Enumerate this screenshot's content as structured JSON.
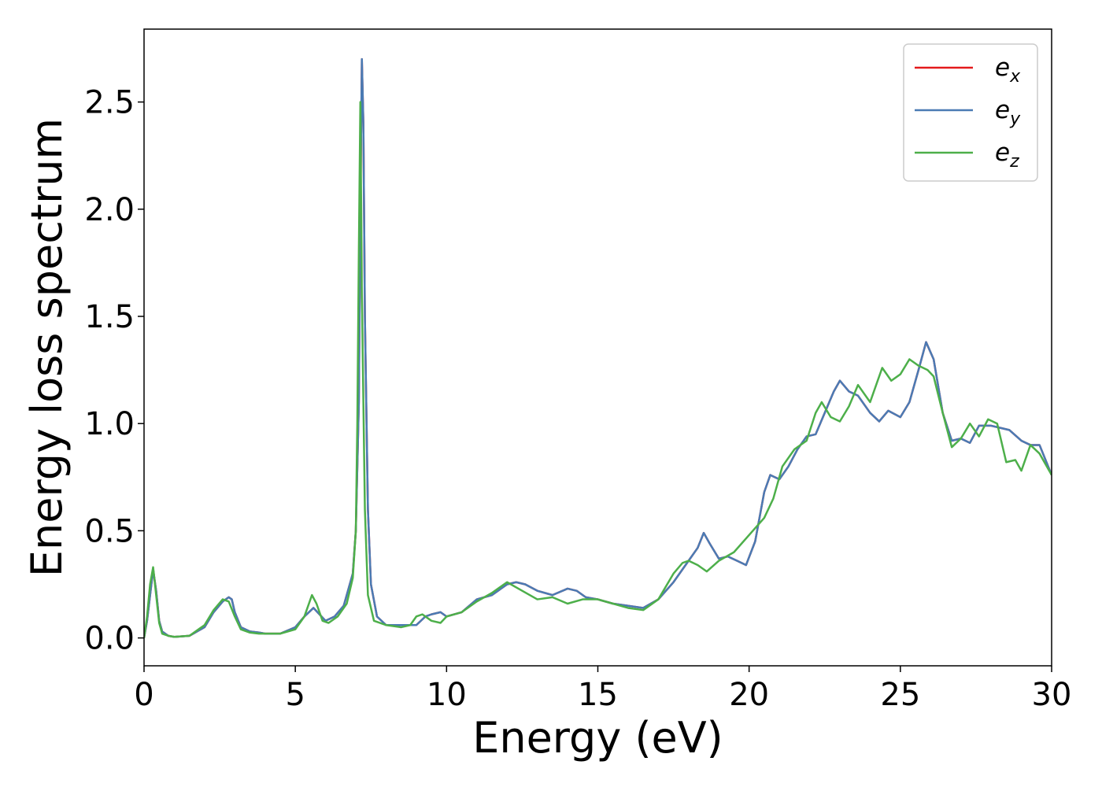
{
  "chart_data": {
    "type": "line",
    "xlabel": "Energy (eV)",
    "ylabel": "Energy loss spectrum",
    "xlim": [
      0,
      30
    ],
    "ylim": [
      -0.13,
      2.84
    ],
    "xticks": [
      0,
      5,
      10,
      15,
      20,
      25,
      30
    ],
    "xtick_labels": [
      "0",
      "5",
      "10",
      "15",
      "20",
      "25",
      "30"
    ],
    "yticks": [
      0.0,
      0.5,
      1.0,
      1.5,
      2.0,
      2.5
    ],
    "ytick_labels": [
      "0.0",
      "0.5",
      "1.0",
      "1.5",
      "2.0",
      "2.5"
    ],
    "grid": false,
    "legend_position": "top-right",
    "series": [
      {
        "name": "e_x",
        "legend_base": "e",
        "legend_sub": "x",
        "color": "#e41a1c",
        "x": [
          0,
          0.1,
          0.2,
          0.3,
          0.4,
          0.5,
          0.6,
          0.8,
          1.0,
          1.5,
          2.0,
          2.3,
          2.6,
          2.8,
          2.9,
          3.0,
          3.2,
          3.5,
          3.8,
          4.0,
          4.5,
          5.0,
          5.3,
          5.6,
          5.8,
          6.0,
          6.3,
          6.6,
          6.9,
          7.0,
          7.1,
          7.15,
          7.2,
          7.25,
          7.3,
          7.4,
          7.5,
          7.7,
          8.0,
          8.5,
          9.0,
          9.3,
          9.5,
          9.8,
          10.0,
          10.5,
          11.0,
          11.5,
          12.0,
          12.3,
          12.6,
          13.0,
          13.5,
          14.0,
          14.3,
          14.6,
          15.0,
          15.5,
          16.0,
          16.5,
          17.0,
          17.5,
          18.0,
          18.3,
          18.5,
          18.7,
          19.0,
          19.3,
          19.6,
          19.9,
          20.2,
          20.5,
          20.7,
          21.0,
          21.3,
          21.6,
          21.9,
          22.2,
          22.5,
          22.8,
          23.0,
          23.3,
          23.6,
          24.0,
          24.3,
          24.6,
          25.0,
          25.3,
          25.6,
          25.85,
          26.1,
          26.4,
          26.7,
          27.0,
          27.3,
          27.6,
          28.0,
          28.3,
          28.6,
          29.0,
          29.3,
          29.6,
          30.0
        ],
        "values": [
          0.0,
          0.08,
          0.2,
          0.32,
          0.22,
          0.08,
          0.03,
          0.01,
          0.005,
          0.01,
          0.05,
          0.12,
          0.17,
          0.19,
          0.18,
          0.12,
          0.05,
          0.03,
          0.025,
          0.02,
          0.02,
          0.05,
          0.1,
          0.14,
          0.11,
          0.08,
          0.1,
          0.15,
          0.3,
          0.5,
          1.1,
          2.0,
          2.7,
          2.4,
          1.5,
          0.6,
          0.25,
          0.1,
          0.06,
          0.06,
          0.06,
          0.1,
          0.11,
          0.12,
          0.1,
          0.12,
          0.18,
          0.2,
          0.25,
          0.26,
          0.25,
          0.22,
          0.2,
          0.23,
          0.22,
          0.19,
          0.18,
          0.16,
          0.15,
          0.14,
          0.18,
          0.26,
          0.36,
          0.42,
          0.49,
          0.44,
          0.37,
          0.38,
          0.36,
          0.34,
          0.45,
          0.68,
          0.76,
          0.74,
          0.8,
          0.88,
          0.94,
          0.95,
          1.05,
          1.15,
          1.2,
          1.15,
          1.13,
          1.05,
          1.01,
          1.06,
          1.03,
          1.1,
          1.25,
          1.38,
          1.3,
          1.05,
          0.92,
          0.93,
          0.91,
          0.99,
          0.99,
          0.98,
          0.97,
          0.92,
          0.9,
          0.9,
          0.76
        ]
      },
      {
        "name": "e_y",
        "legend_base": "e",
        "legend_sub": "y",
        "color": "#4a7bb4",
        "x": [
          0,
          0.1,
          0.2,
          0.3,
          0.4,
          0.5,
          0.6,
          0.8,
          1.0,
          1.5,
          2.0,
          2.3,
          2.6,
          2.8,
          2.9,
          3.0,
          3.2,
          3.5,
          3.8,
          4.0,
          4.5,
          5.0,
          5.3,
          5.6,
          5.8,
          6.0,
          6.3,
          6.6,
          6.9,
          7.0,
          7.1,
          7.15,
          7.2,
          7.25,
          7.3,
          7.4,
          7.5,
          7.7,
          8.0,
          8.5,
          9.0,
          9.3,
          9.5,
          9.8,
          10.0,
          10.5,
          11.0,
          11.5,
          12.0,
          12.3,
          12.6,
          13.0,
          13.5,
          14.0,
          14.3,
          14.6,
          15.0,
          15.5,
          16.0,
          16.5,
          17.0,
          17.5,
          18.0,
          18.3,
          18.5,
          18.7,
          19.0,
          19.3,
          19.6,
          19.9,
          20.2,
          20.5,
          20.7,
          21.0,
          21.3,
          21.6,
          21.9,
          22.2,
          22.5,
          22.8,
          23.0,
          23.3,
          23.6,
          24.0,
          24.3,
          24.6,
          25.0,
          25.3,
          25.6,
          25.85,
          26.1,
          26.4,
          26.7,
          27.0,
          27.3,
          27.6,
          28.0,
          28.3,
          28.6,
          29.0,
          29.3,
          29.6,
          30.0
        ],
        "values": [
          0.0,
          0.08,
          0.2,
          0.32,
          0.22,
          0.08,
          0.03,
          0.01,
          0.005,
          0.01,
          0.05,
          0.12,
          0.17,
          0.19,
          0.18,
          0.12,
          0.05,
          0.03,
          0.025,
          0.02,
          0.02,
          0.05,
          0.1,
          0.14,
          0.11,
          0.08,
          0.1,
          0.15,
          0.3,
          0.5,
          1.1,
          2.0,
          2.7,
          2.4,
          1.5,
          0.6,
          0.25,
          0.1,
          0.06,
          0.06,
          0.06,
          0.1,
          0.11,
          0.12,
          0.1,
          0.12,
          0.18,
          0.2,
          0.25,
          0.26,
          0.25,
          0.22,
          0.2,
          0.23,
          0.22,
          0.19,
          0.18,
          0.16,
          0.15,
          0.14,
          0.18,
          0.26,
          0.36,
          0.42,
          0.49,
          0.44,
          0.37,
          0.38,
          0.36,
          0.34,
          0.45,
          0.68,
          0.76,
          0.74,
          0.8,
          0.88,
          0.94,
          0.95,
          1.05,
          1.15,
          1.2,
          1.15,
          1.13,
          1.05,
          1.01,
          1.06,
          1.03,
          1.1,
          1.25,
          1.38,
          1.3,
          1.05,
          0.92,
          0.93,
          0.91,
          0.99,
          0.99,
          0.98,
          0.97,
          0.92,
          0.9,
          0.9,
          0.76
        ]
      },
      {
        "name": "e_z",
        "legend_base": "e",
        "legend_sub": "z",
        "color": "#4daf4a",
        "x": [
          0,
          0.1,
          0.2,
          0.3,
          0.4,
          0.5,
          0.6,
          0.8,
          1.0,
          1.5,
          2.0,
          2.3,
          2.6,
          2.8,
          3.0,
          3.2,
          3.5,
          3.8,
          4.0,
          4.5,
          5.0,
          5.3,
          5.55,
          5.7,
          5.9,
          6.1,
          6.4,
          6.7,
          6.9,
          7.0,
          7.05,
          7.1,
          7.15,
          7.2,
          7.3,
          7.4,
          7.6,
          8.0,
          8.5,
          8.8,
          9.0,
          9.2,
          9.5,
          9.8,
          10.0,
          10.5,
          11.0,
          11.5,
          12.0,
          12.5,
          13.0,
          13.5,
          14.0,
          14.5,
          15.0,
          15.5,
          16.0,
          16.5,
          17.0,
          17.5,
          17.8,
          18.0,
          18.3,
          18.6,
          19.0,
          19.5,
          20.0,
          20.5,
          20.8,
          21.1,
          21.5,
          21.9,
          22.2,
          22.4,
          22.7,
          23.0,
          23.3,
          23.6,
          24.0,
          24.4,
          24.7,
          25.0,
          25.3,
          25.6,
          25.9,
          26.1,
          26.4,
          26.7,
          27.0,
          27.3,
          27.6,
          27.9,
          28.2,
          28.5,
          28.8,
          29.0,
          29.3,
          29.6,
          30.0
        ],
        "values": [
          0.0,
          0.1,
          0.25,
          0.33,
          0.2,
          0.07,
          0.02,
          0.01,
          0.005,
          0.01,
          0.06,
          0.13,
          0.18,
          0.17,
          0.1,
          0.04,
          0.025,
          0.02,
          0.02,
          0.02,
          0.04,
          0.1,
          0.2,
          0.16,
          0.08,
          0.07,
          0.1,
          0.16,
          0.28,
          0.5,
          1.0,
          1.8,
          2.5,
          1.6,
          0.6,
          0.2,
          0.08,
          0.06,
          0.05,
          0.06,
          0.1,
          0.11,
          0.08,
          0.07,
          0.1,
          0.12,
          0.17,
          0.21,
          0.26,
          0.22,
          0.18,
          0.19,
          0.16,
          0.18,
          0.18,
          0.16,
          0.14,
          0.13,
          0.18,
          0.3,
          0.35,
          0.36,
          0.34,
          0.31,
          0.36,
          0.4,
          0.48,
          0.56,
          0.65,
          0.8,
          0.88,
          0.92,
          1.05,
          1.1,
          1.03,
          1.01,
          1.08,
          1.18,
          1.1,
          1.26,
          1.2,
          1.23,
          1.3,
          1.27,
          1.25,
          1.22,
          1.05,
          0.89,
          0.93,
          1.0,
          0.94,
          1.02,
          1.0,
          0.82,
          0.83,
          0.78,
          0.9,
          0.86,
          0.76
        ]
      }
    ]
  }
}
